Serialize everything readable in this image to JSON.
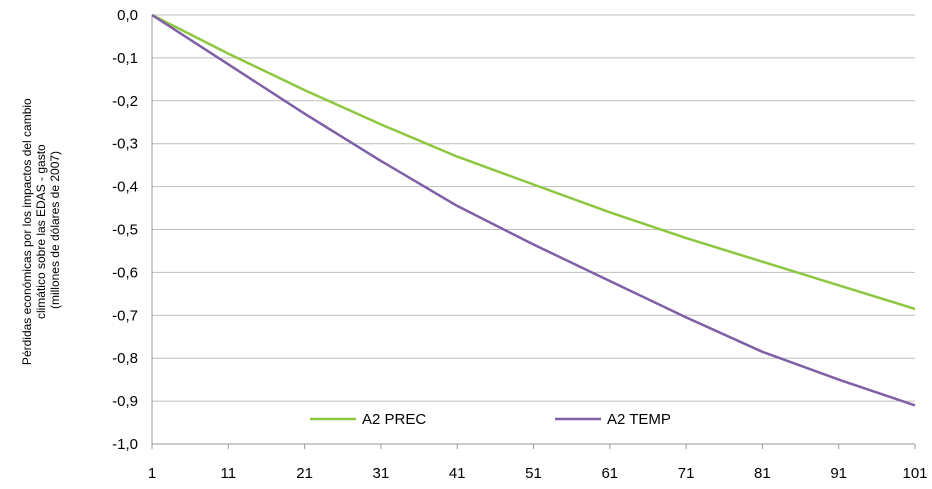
{
  "chart_data": {
    "type": "line",
    "title": "",
    "xlabel": "",
    "ylabel": [
      "Pérdidas económicas por los impactos del cambio",
      "climático sobre las EDAS - gasto",
      "(millones de dólares de 2007)"
    ],
    "x_ticks": [
      1,
      11,
      21,
      31,
      41,
      51,
      61,
      71,
      81,
      91,
      101
    ],
    "xlim": [
      1,
      101
    ],
    "y_ticks": [
      "0,0",
      "-0,1",
      "-0,2",
      "-0,3",
      "-0,4",
      "-0,5",
      "-0,6",
      "-0,7",
      "-0,8",
      "-0,9",
      "-1,0"
    ],
    "ylim": [
      -1.0,
      0.0
    ],
    "grid": "horizontal",
    "legend": "bottom-inside",
    "series": [
      {
        "name": "A2 PREC",
        "color": "#8dc63f",
        "x": [
          1,
          11,
          21,
          31,
          41,
          51,
          61,
          71,
          81,
          91,
          101
        ],
        "values": [
          0.0,
          -0.09,
          -0.175,
          -0.255,
          -0.33,
          -0.395,
          -0.46,
          -0.52,
          -0.575,
          -0.63,
          -0.685
        ]
      },
      {
        "name": "A2 TEMP",
        "color": "#7f5fa8",
        "x": [
          1,
          11,
          21,
          31,
          41,
          51,
          61,
          71,
          81,
          91,
          101
        ],
        "values": [
          0.0,
          -0.115,
          -0.23,
          -0.34,
          -0.445,
          -0.535,
          -0.62,
          -0.705,
          -0.785,
          -0.85,
          -0.91
        ]
      }
    ]
  }
}
